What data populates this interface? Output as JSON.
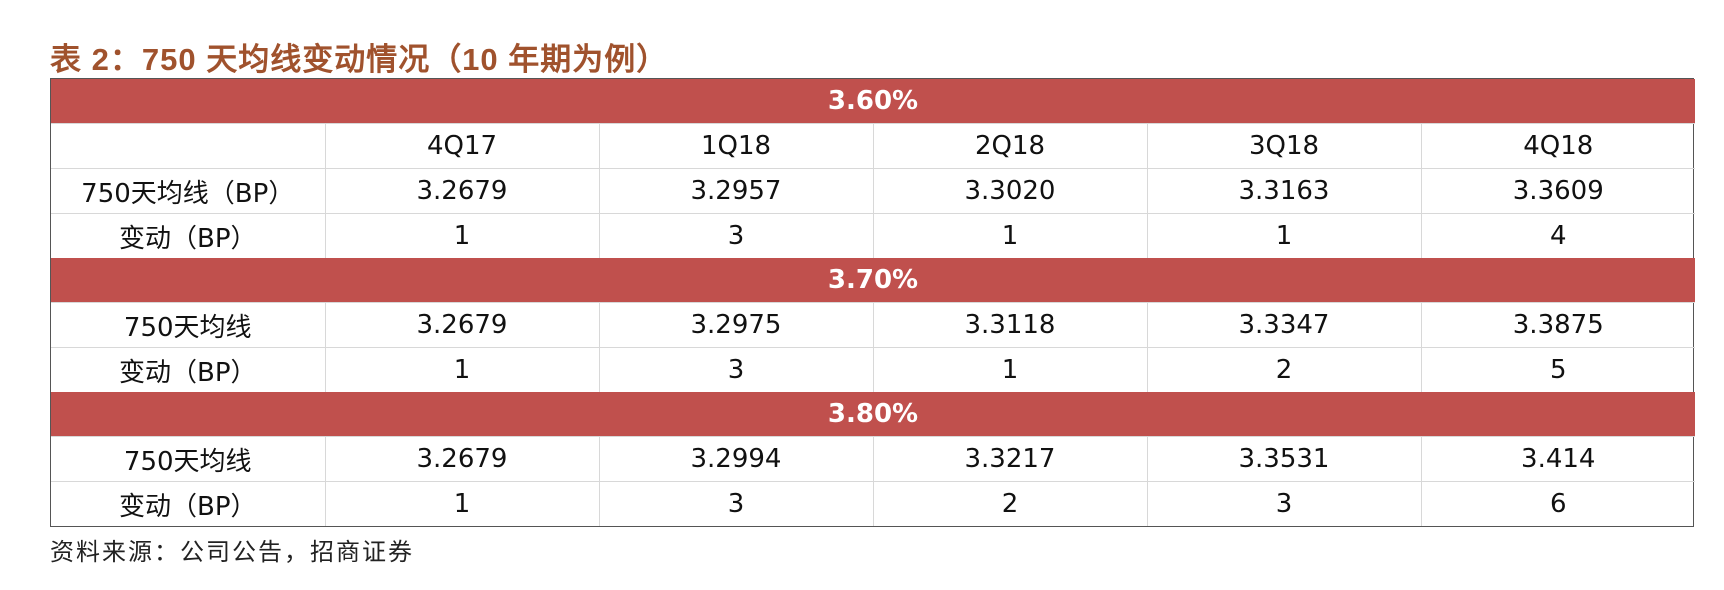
{
  "title": "表 2：750 天均线变动情况（10 年期为例）",
  "columns": [
    "4Q17",
    "1Q18",
    "2Q18",
    "3Q18",
    "4Q18"
  ],
  "sections": [
    {
      "rate": "3.60%",
      "rows": [
        {
          "label": "750天均线（BP）",
          "values": [
            "3.2679",
            "3.2957",
            "3.3020",
            "3.3163",
            "3.3609"
          ]
        },
        {
          "label": "变动（BP）",
          "values": [
            "1",
            "3",
            "1",
            "1",
            "4"
          ]
        }
      ]
    },
    {
      "rate": "3.70%",
      "rows": [
        {
          "label": "750天均线",
          "values": [
            "3.2679",
            "3.2975",
            "3.3118",
            "3.3347",
            "3.3875"
          ]
        },
        {
          "label": "变动（BP）",
          "values": [
            "1",
            "3",
            "1",
            "2",
            "5"
          ]
        }
      ]
    },
    {
      "rate": "3.80%",
      "rows": [
        {
          "label": "750天均线",
          "values": [
            "3.2679",
            "3.2994",
            "3.3217",
            "3.3531",
            "3.414"
          ]
        },
        {
          "label": "变动（BP）",
          "values": [
            "1",
            "3",
            "2",
            "3",
            "6"
          ]
        }
      ]
    }
  ],
  "source": "资料来源：公司公告，招商证券",
  "colors": {
    "title": "#a0522d",
    "section_band": "#c0504d",
    "section_text": "#ffffff"
  }
}
